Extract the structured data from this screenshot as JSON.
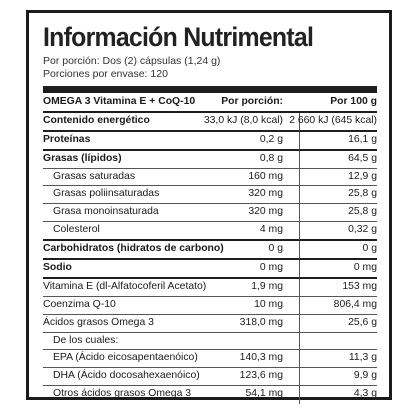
{
  "title": "Información Nutrimental",
  "meta": {
    "serving": "Por porción: Dos (2) cápsulas (1,24 g)",
    "portions": "Porciones por envase: 120"
  },
  "table": {
    "header": {
      "name": "OMEGA 3 Vitamina E + CoQ-10",
      "per_portion": "Por porción:",
      "per_100": "Por 100 g"
    },
    "rows": [
      {
        "name": "Contenido energético",
        "per_portion": "33,0 kJ (8,0 kcal)",
        "per_100": "2 660 kJ (645 kcal)",
        "bold": true,
        "sub": false,
        "thick": true
      },
      {
        "name": "Proteínas",
        "per_portion": "0,2 g",
        "per_100": "16,1 g",
        "bold": true,
        "sub": false,
        "thick": true
      },
      {
        "name": "Grasas (lípidos)",
        "per_portion": "0,8 g",
        "per_100": "64,5 g",
        "bold": true,
        "sub": false,
        "thick": false
      },
      {
        "name": "Grasas saturadas",
        "per_portion": "160 mg",
        "per_100": "12,9 g",
        "bold": false,
        "sub": true,
        "thick": false
      },
      {
        "name": "Grasas poliinsaturadas",
        "per_portion": "320 mg",
        "per_100": "25,8 g",
        "bold": false,
        "sub": true,
        "thick": false
      },
      {
        "name": "Grasa monoinsaturada",
        "per_portion": "320 mg",
        "per_100": "25,8 g",
        "bold": false,
        "sub": true,
        "thick": false
      },
      {
        "name": "Colesterol",
        "per_portion": "4 mg",
        "per_100": "0,32 g",
        "bold": false,
        "sub": true,
        "thick": true
      },
      {
        "name": "Carbohidratos (hidratos de carbono)",
        "per_portion": "0 g",
        "per_100": "0 g",
        "bold": true,
        "sub": false,
        "thick": true
      },
      {
        "name": "Sodio",
        "per_portion": "0 mg",
        "per_100": "0 mg",
        "bold": true,
        "sub": false,
        "thick": true
      },
      {
        "name": "Vitamina E (dl-Alfatocoferil Acetato)",
        "per_portion": "1,9 mg",
        "per_100": "153 mg",
        "bold": false,
        "sub": false,
        "thick": false
      },
      {
        "name": "Coenzima Q-10",
        "per_portion": "10 mg",
        "per_100": "806,4 mg",
        "bold": false,
        "sub": false,
        "thick": false
      },
      {
        "name": "Ácidos grasos Omega 3",
        "per_portion": "318,0 mg",
        "per_100": "25,6 g",
        "bold": false,
        "sub": false,
        "thick": false
      },
      {
        "name": "De los cuales:",
        "per_portion": "",
        "per_100": "",
        "bold": false,
        "sub": true,
        "thick": false
      },
      {
        "name": "EPA (Ácido eicosapentaenóico)",
        "per_portion": "140,3 mg",
        "per_100": "11,3 g",
        "bold": false,
        "sub": true,
        "thick": false
      },
      {
        "name": "DHA (Ácido docosahexaenóico)",
        "per_portion": "123,6 mg",
        "per_100": "9,9 g",
        "bold": false,
        "sub": true,
        "thick": false
      },
      {
        "name": "Otros ácidos grasos Omega 3",
        "per_portion": "54,1 mg",
        "per_100": "4,3 g",
        "bold": false,
        "sub": true,
        "thick": false
      }
    ]
  }
}
